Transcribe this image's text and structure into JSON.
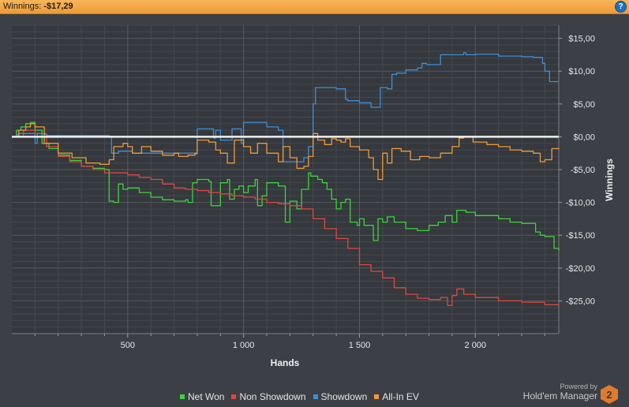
{
  "header": {
    "winnings_label": "Winnings:",
    "winnings_value": "-$17,29",
    "help_symbol": "?"
  },
  "branding": {
    "powered_by": "Powered by",
    "product": "Hold'em Manager",
    "logo_number": "2"
  },
  "chart_data": {
    "type": "line",
    "xlabel": "Hands",
    "ylabel": "Winnings",
    "xlim": [
      0,
      2360
    ],
    "ylim": [
      -30,
      17
    ],
    "x_ticks": [
      500,
      1000,
      1500,
      2000
    ],
    "x_tick_labels": [
      "500",
      "1 000",
      "1 500",
      "2 000"
    ],
    "y_ticks": [
      15,
      10,
      5,
      0,
      -5,
      -10,
      -15,
      -20,
      -25
    ],
    "y_tick_labels": [
      "$15,00",
      "$10,00",
      "$5,00",
      "$0,00",
      "-$5,00",
      "-$10,00",
      "-$15,00",
      "-$20,00",
      "-$25,00"
    ],
    "grid": true,
    "legend_position": "bottom",
    "zero_line_color": "#f0f0f0",
    "series": [
      {
        "name": "Net Won",
        "color": "#3bd43b",
        "x": [
          0,
          20,
          40,
          60,
          80,
          100,
          130,
          160,
          200,
          250,
          300,
          350,
          400,
          420,
          430,
          440,
          460,
          480,
          500,
          550,
          600,
          650,
          700,
          750,
          760,
          780,
          800,
          850,
          860,
          900,
          930,
          940,
          960,
          980,
          1000,
          1020,
          1050,
          1060,
          1080,
          1100,
          1150,
          1180,
          1200,
          1230,
          1250,
          1280,
          1290,
          1320,
          1340,
          1360,
          1380,
          1400,
          1420,
          1440,
          1460,
          1490,
          1500,
          1520,
          1560,
          1580,
          1600,
          1620,
          1650,
          1700,
          1750,
          1800,
          1840,
          1870,
          1900,
          1920,
          1960,
          2000,
          2100,
          2150,
          2200,
          2260,
          2280,
          2300,
          2340,
          2360
        ],
        "y": [
          0,
          1,
          1.5,
          2,
          2.2,
          1,
          -1,
          -1.8,
          -2.8,
          -3.6,
          -4.5,
          -4.8,
          -5,
          -9.8,
          -9.8,
          -10,
          -7.2,
          -8,
          -7.8,
          -8.5,
          -9.2,
          -9.6,
          -9.8,
          -9.6,
          -10,
          -7,
          -6.5,
          -6.8,
          -10.5,
          -7,
          -6.5,
          -9.5,
          -8,
          -7.5,
          -8.5,
          -7.5,
          -6.5,
          -10.5,
          -9,
          -7,
          -7.5,
          -13,
          -9.8,
          -11,
          -8,
          -5.5,
          -6,
          -6.5,
          -7,
          -8,
          -9.5,
          -11,
          -10,
          -9.5,
          -13,
          -13.5,
          -12.5,
          -13.5,
          -15.8,
          -12.5,
          -13,
          -12.2,
          -13,
          -14,
          -14.3,
          -13.5,
          -13,
          -12,
          -13,
          -11.2,
          -11.5,
          -12,
          -12.5,
          -13,
          -13.2,
          -14.5,
          -15,
          -15.2,
          -17,
          -17.3
        ]
      },
      {
        "name": "Non Showdown",
        "color": "#e0473f",
        "x": [
          0,
          50,
          100,
          150,
          200,
          250,
          300,
          350,
          400,
          450,
          500,
          550,
          600,
          650,
          700,
          750,
          800,
          850,
          900,
          950,
          1000,
          1050,
          1100,
          1150,
          1200,
          1250,
          1300,
          1350,
          1400,
          1450,
          1500,
          1550,
          1600,
          1650,
          1700,
          1750,
          1800,
          1850,
          1880,
          1900,
          1920,
          1950,
          2000,
          2100,
          2200,
          2300,
          2360
        ],
        "y": [
          0,
          1,
          0.5,
          -1.5,
          -3,
          -3.8,
          -4.5,
          -5,
          -5.5,
          -5.5,
          -5.8,
          -6.2,
          -6.5,
          -7.2,
          -7.8,
          -8,
          -8.2,
          -8.5,
          -8.7,
          -9,
          -9.2,
          -9.5,
          -10,
          -10.2,
          -10.5,
          -11,
          -12.5,
          -14,
          -15.5,
          -17,
          -19.5,
          -20.5,
          -21.5,
          -23,
          -24,
          -24.6,
          -24.8,
          -24.5,
          -25.7,
          -24.2,
          -23.2,
          -24,
          -24.5,
          -25,
          -25.2,
          -25.6,
          -25.8
        ]
      },
      {
        "name": "Showdown",
        "color": "#3d8fd8",
        "x": [
          0,
          20,
          30,
          80,
          100,
          110,
          140,
          150,
          220,
          300,
          370,
          420,
          430,
          440,
          460,
          480,
          520,
          600,
          700,
          790,
          800,
          860,
          870,
          880,
          900,
          930,
          950,
          990,
          1000,
          1050,
          1100,
          1150,
          1170,
          1200,
          1240,
          1260,
          1280,
          1300,
          1310,
          1350,
          1400,
          1440,
          1450,
          1500,
          1550,
          1580,
          1590,
          1620,
          1640,
          1660,
          1700,
          1750,
          1770,
          1790,
          1830,
          1850,
          1900,
          1950,
          1960,
          2000,
          2100,
          2200,
          2250,
          2290,
          2300,
          2320,
          2360
        ],
        "y": [
          0,
          0.3,
          0.5,
          0.5,
          -1,
          0.5,
          0.4,
          0.2,
          0.2,
          0.2,
          0.2,
          0.1,
          -2.5,
          -2.5,
          -2.2,
          -2.2,
          -2.5,
          -2.5,
          -2.5,
          -2.6,
          1.2,
          1.2,
          -0.2,
          1,
          -0.5,
          -0.5,
          1.2,
          -1,
          2.2,
          2.2,
          1.5,
          1,
          -3.8,
          -3.8,
          -3.8,
          -3.2,
          -1.5,
          5,
          7.5,
          7.5,
          7.3,
          5.7,
          5.5,
          5.2,
          4.5,
          4.5,
          7.5,
          7.3,
          9.5,
          9.7,
          10.2,
          10.5,
          11.2,
          11,
          11,
          12.5,
          12.5,
          12.8,
          12.5,
          12.6,
          12.3,
          12.2,
          12.1,
          11.2,
          10,
          8.4,
          8.4
        ]
      },
      {
        "name": "All-In EV",
        "color": "#ef9a38",
        "x": [
          0,
          30,
          60,
          80,
          100,
          140,
          200,
          260,
          320,
          380,
          420,
          440,
          480,
          500,
          520,
          560,
          600,
          650,
          700,
          720,
          760,
          790,
          800,
          850,
          880,
          900,
          930,
          960,
          1000,
          1030,
          1060,
          1100,
          1150,
          1170,
          1200,
          1230,
          1260,
          1280,
          1300,
          1320,
          1350,
          1380,
          1400,
          1420,
          1440,
          1460,
          1500,
          1540,
          1560,
          1580,
          1600,
          1620,
          1640,
          1680,
          1720,
          1760,
          1800,
          1850,
          1900,
          1930,
          1950,
          1990,
          2050,
          2100,
          2150,
          2200,
          2250,
          2280,
          2300,
          2330,
          2360
        ],
        "y": [
          0,
          1,
          1.5,
          2,
          1.5,
          -1,
          -2.5,
          -3.2,
          -4,
          -4.2,
          -3.5,
          -1.5,
          -1,
          -1.5,
          -2.5,
          -1.5,
          -2.2,
          -2.8,
          -2.5,
          -3,
          -2.8,
          -2.5,
          -0.5,
          -0.8,
          -2,
          -2.5,
          -4,
          -0.5,
          -1.5,
          -2.5,
          -1,
          -2.5,
          -3.8,
          -1.5,
          -3.2,
          -4.8,
          -4.5,
          -3,
          0.5,
          -0.5,
          -1.2,
          -0.3,
          -0.5,
          -0.8,
          -0.3,
          -1.5,
          -2,
          -3.2,
          -5,
          -6.5,
          -2.5,
          -4,
          -1.8,
          -2.2,
          -3.5,
          -3,
          -3.2,
          -2.5,
          -1.5,
          -0.2,
          0,
          -0.8,
          -1.2,
          -1.5,
          -2,
          -2.2,
          -2.5,
          -3.8,
          -3.5,
          -1.8,
          -1.9
        ]
      }
    ]
  }
}
